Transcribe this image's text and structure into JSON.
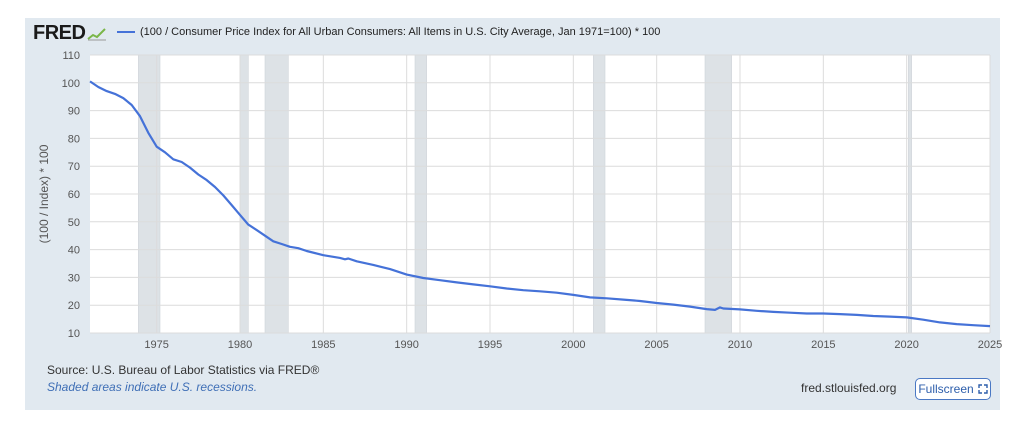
{
  "brand": {
    "logo": "FRED"
  },
  "chart_data": {
    "type": "line",
    "title": "(100 / Consumer Price Index for All Urban Consumers: All Items in U.S. City Average, Jan 1971=100) * 100",
    "xlabel": "",
    "ylabel": "(100 / Index) * 100",
    "xlim": [
      1971,
      2025
    ],
    "ylim": [
      10,
      110
    ],
    "x_ticks": [
      1975,
      1980,
      1985,
      1990,
      1995,
      2000,
      2005,
      2010,
      2015,
      2020,
      2025
    ],
    "y_ticks": [
      10,
      20,
      30,
      40,
      50,
      60,
      70,
      80,
      90,
      100,
      110
    ],
    "grid": true,
    "recessions": [
      [
        1973.9,
        1975.2
      ],
      [
        1980.0,
        1980.5
      ],
      [
        1981.5,
        1982.9
      ],
      [
        1990.5,
        1991.2
      ],
      [
        2001.2,
        2001.9
      ],
      [
        2007.9,
        2009.5
      ],
      [
        2020.1,
        2020.3
      ]
    ],
    "series": [
      {
        "name": "(100 / Consumer Price Index for All Urban Consumers: All Items in U.S. City Average, Jan 1971=100) * 100",
        "color": "#4572d8",
        "x": [
          1971,
          1971.5,
          1972,
          1972.5,
          1973,
          1973.5,
          1974,
          1974.5,
          1975,
          1975.5,
          1976,
          1976.5,
          1977,
          1977.5,
          1978,
          1978.5,
          1979,
          1979.5,
          1980,
          1980.5,
          1981,
          1981.5,
          1982,
          1982.5,
          1983,
          1983.5,
          1984,
          1985,
          1986,
          1986.3,
          1986.5,
          1987,
          1988,
          1989,
          1990,
          1991,
          1992,
          1993,
          1994,
          1995,
          1996,
          1997,
          1998,
          1999,
          2000,
          2001,
          2002,
          2003,
          2004,
          2005,
          2006,
          2007,
          2008,
          2008.5,
          2008.8,
          2009,
          2010,
          2011,
          2012,
          2013,
          2014,
          2015,
          2016,
          2017,
          2018,
          2019,
          2020,
          2021,
          2022,
          2023,
          2024,
          2025
        ],
        "values": [
          100.5,
          98.5,
          97,
          96,
          94.5,
          92,
          88,
          82,
          77,
          75,
          72.5,
          71.5,
          69.5,
          67,
          65,
          62.5,
          59.5,
          56,
          52.5,
          49,
          47,
          45,
          43,
          42,
          41,
          40.5,
          39.5,
          38,
          37,
          36.5,
          36.8,
          35.8,
          34.5,
          33,
          31,
          29.8,
          29,
          28.2,
          27.5,
          26.8,
          26,
          25.4,
          25,
          24.5,
          23.7,
          22.8,
          22.5,
          22,
          21.5,
          20.8,
          20.2,
          19.5,
          18.6,
          18.3,
          19.2,
          18.8,
          18.5,
          18,
          17.6,
          17.3,
          17,
          17,
          16.8,
          16.5,
          16.1,
          15.9,
          15.6,
          14.8,
          13.8,
          13.2,
          12.8,
          12.5
        ]
      }
    ]
  },
  "footer": {
    "source": "Source: U.S. Bureau of Labor Statistics via FRED®",
    "recession_note": "Shaded areas indicate U.S. recessions.",
    "site": "fred.stlouisfed.org",
    "fullscreen_label": "Fullscreen"
  },
  "colors": {
    "panel": "#e1e9f0",
    "plot": "#ffffff",
    "recession": "#dde2e6",
    "line": "#4572d8",
    "grid": "#dcdcdc"
  }
}
